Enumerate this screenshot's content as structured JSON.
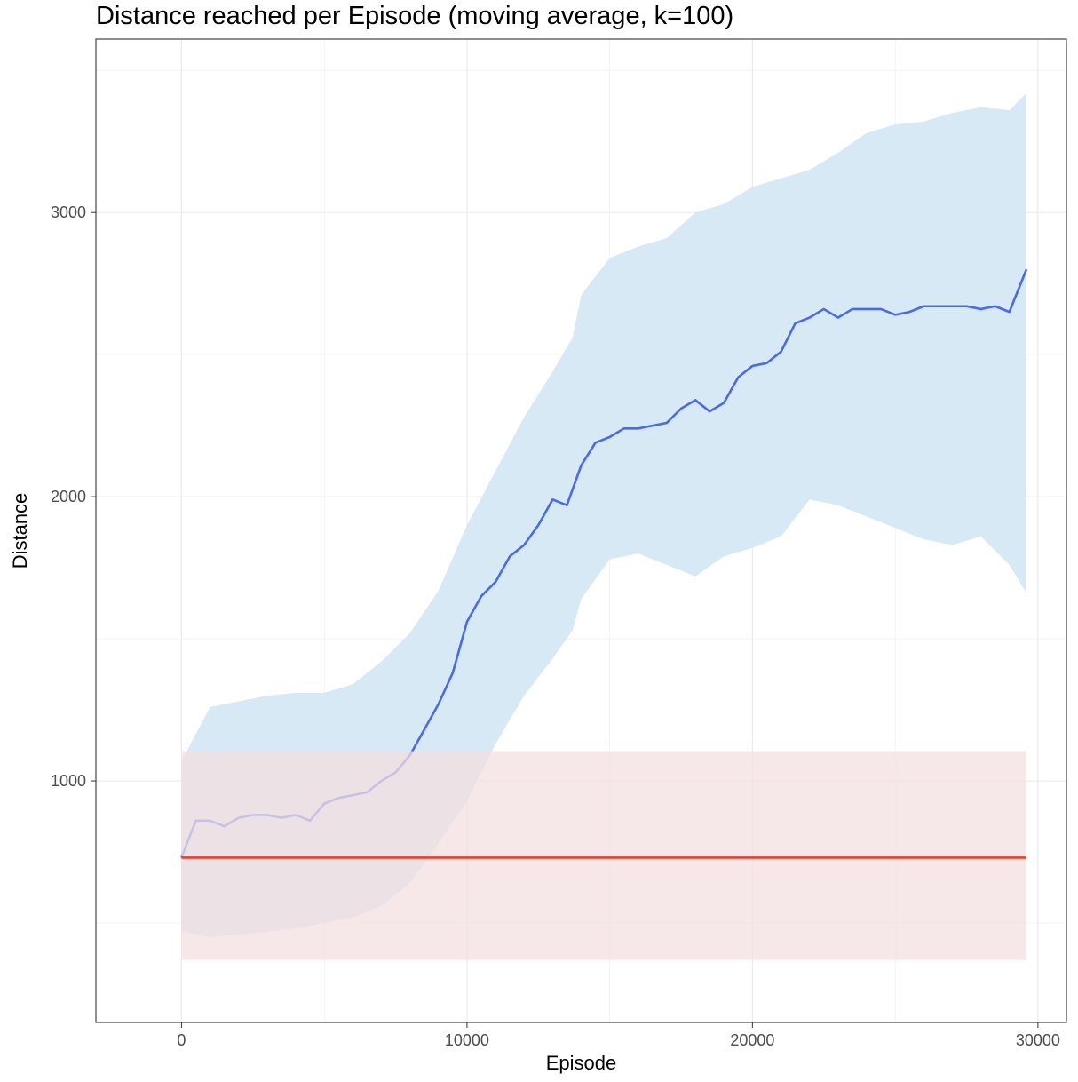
{
  "chart_data": {
    "type": "line",
    "title": "Distance reached per Episode (moving average, k=100)",
    "xlabel": "Episode",
    "ylabel": "Distance",
    "xlim": [
      -3000,
      31000
    ],
    "ylim": [
      150,
      3610
    ],
    "x_ticks": [
      0,
      10000,
      20000,
      30000
    ],
    "x_tick_labels": [
      "0",
      "10000",
      "20000",
      "30000"
    ],
    "y_ticks": [
      1000,
      2000,
      3000
    ],
    "y_tick_labels": [
      "1000",
      "2000",
      "3000"
    ],
    "grid": true,
    "legend": "none",
    "series": [
      {
        "kind": "band",
        "x": [
          0,
          1000,
          2000,
          3000,
          4000,
          5000,
          6000,
          7000,
          8000,
          9000,
          10000,
          11000,
          12000,
          13000,
          13700,
          14000,
          15000,
          16000,
          17000,
          18000,
          19000,
          20000,
          21000,
          22000,
          23000,
          24000,
          25000,
          26000,
          27000,
          28000,
          29000,
          29600
        ],
        "lower": [
          470,
          450,
          460,
          470,
          480,
          500,
          520,
          560,
          640,
          780,
          930,
          1130,
          1300,
          1430,
          1530,
          1640,
          1780,
          1800,
          1760,
          1720,
          1790,
          1820,
          1860,
          1990,
          1970,
          1930,
          1890,
          1850,
          1830,
          1860,
          1760,
          1660
        ],
        "upper": [
          1070,
          1260,
          1280,
          1300,
          1310,
          1310,
          1340,
          1420,
          1520,
          1670,
          1900,
          2090,
          2280,
          2440,
          2560,
          2710,
          2840,
          2880,
          2910,
          3000,
          3030,
          3090,
          3120,
          3150,
          3210,
          3280,
          3310,
          3320,
          3350,
          3370,
          3360,
          3420
        ],
        "color": "#d7e9f5"
      },
      {
        "kind": "line",
        "x": [
          0,
          500,
          1000,
          1500,
          2000,
          2500,
          3000,
          3500,
          4000,
          4500,
          5000,
          5500,
          6000,
          6500,
          7000,
          7500,
          8000,
          8500,
          9000,
          9500,
          10000,
          10500,
          11000,
          11500,
          12000,
          12500,
          13000,
          13500,
          14000,
          14500,
          15000,
          15500,
          16000,
          16500,
          17000,
          17500,
          18000,
          18500,
          19000,
          19500,
          20000,
          20500,
          21000,
          21500,
          22000,
          22500,
          23000,
          23500,
          24000,
          24500,
          25000,
          25500,
          26000,
          26500,
          27000,
          27500,
          28000,
          28500,
          29000,
          29600
        ],
        "y": [
          730,
          860,
          860,
          840,
          870,
          880,
          880,
          870,
          880,
          860,
          920,
          940,
          950,
          960,
          1000,
          1030,
          1090,
          1180,
          1270,
          1380,
          1560,
          1650,
          1700,
          1790,
          1830,
          1900,
          1990,
          1970,
          2110,
          2190,
          2210,
          2240,
          2240,
          2250,
          2260,
          2310,
          2340,
          2300,
          2330,
          2420,
          2460,
          2470,
          2510,
          2610,
          2630,
          2660,
          2630,
          2660,
          2660,
          2660,
          2640,
          2650,
          2670,
          2670,
          2670,
          2670,
          2660,
          2670,
          2650,
          2800
        ],
        "color": "#4a6ae8"
      },
      {
        "kind": "band",
        "x": [
          0,
          29600
        ],
        "lower": [
          370,
          370
        ],
        "upper": [
          1105,
          1105
        ],
        "color": "#f3dfe0"
      },
      {
        "kind": "line",
        "x": [
          0,
          29600
        ],
        "y": [
          730,
          730
        ],
        "color": "#e4402c"
      }
    ]
  }
}
